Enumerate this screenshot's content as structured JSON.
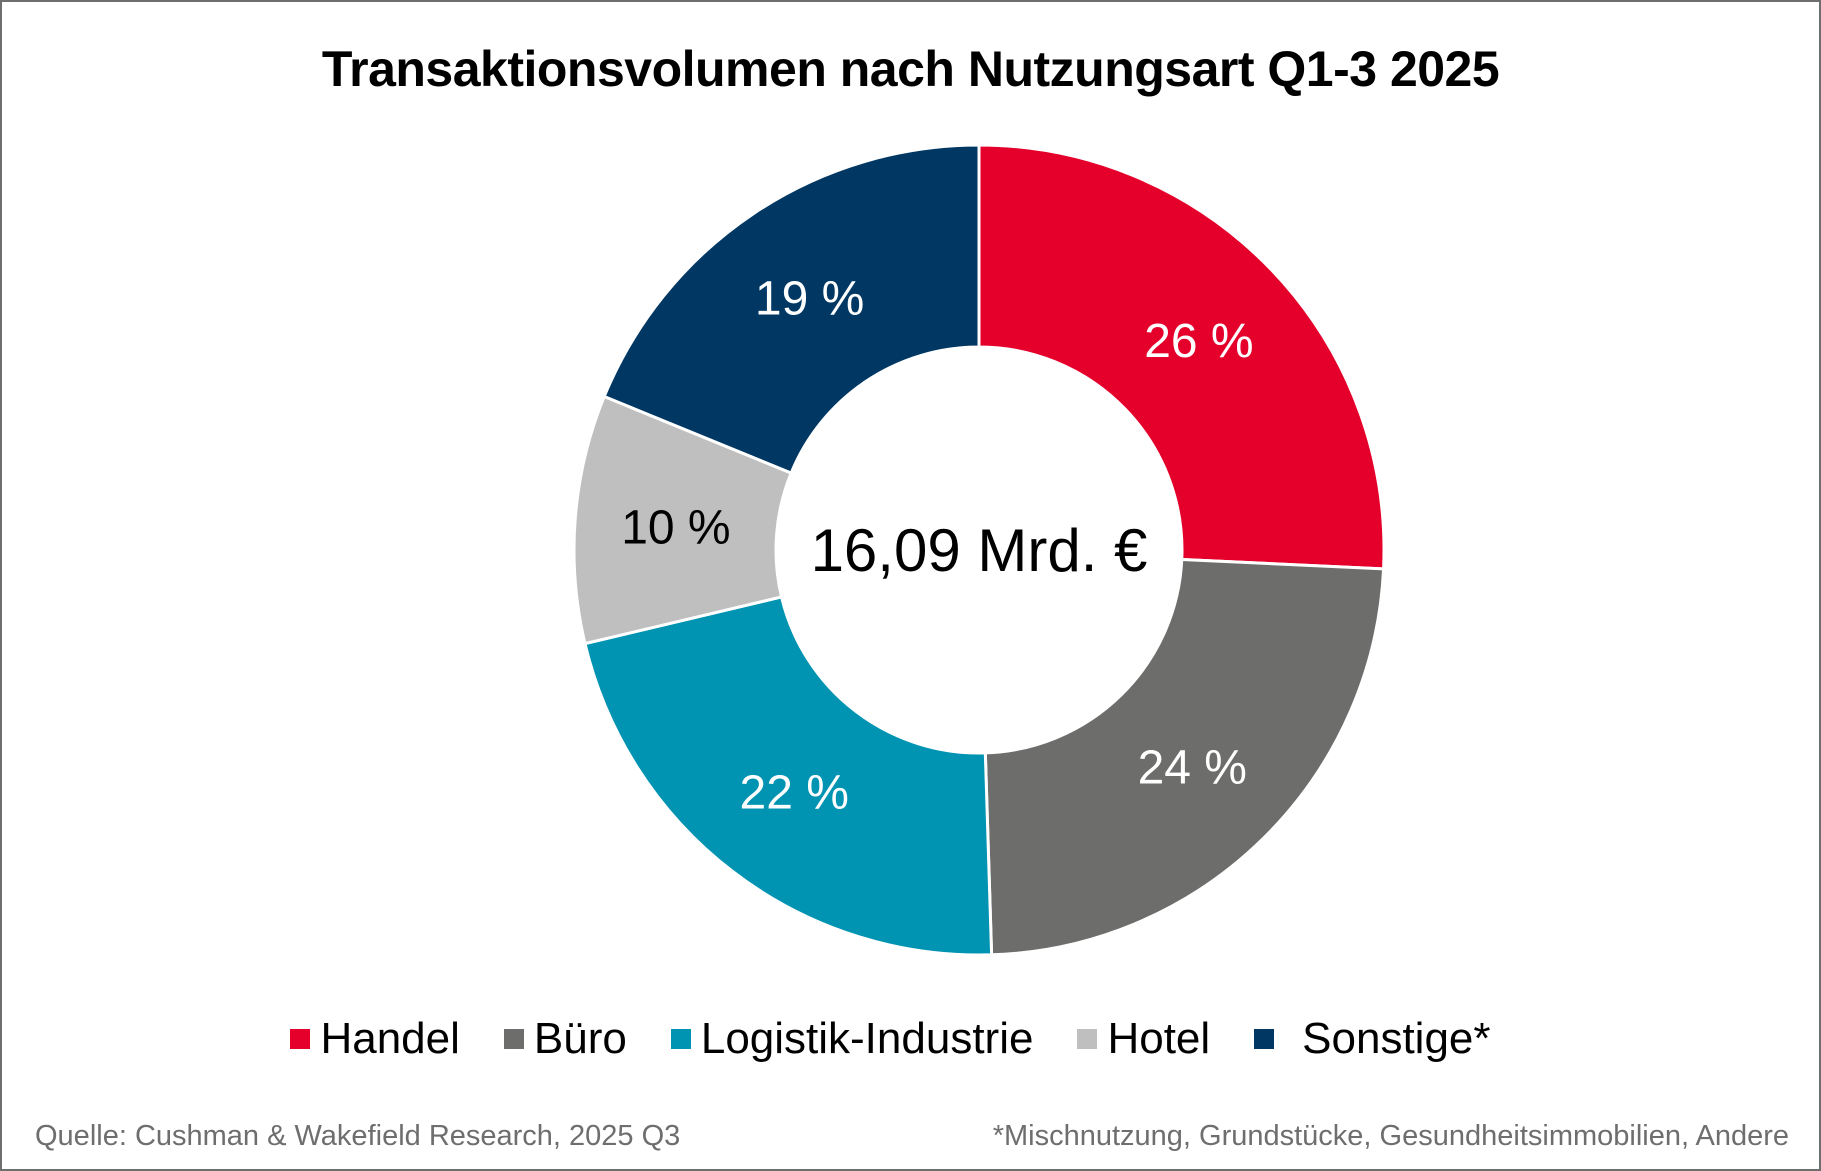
{
  "chart_data": {
    "type": "pie",
    "subtype": "donut",
    "title": "Transaktionsvolumen nach Nutzungsart Q1-3 2025",
    "center_label": "16,09 Mrd. €",
    "start_angle": "top",
    "direction": "clockwise",
    "categories": [
      "Handel",
      "Büro",
      "Logistik-Industrie",
      "Hotel",
      "Sonstige*"
    ],
    "values": [
      26,
      24,
      22,
      10,
      19
    ],
    "value_unit": "%",
    "data_labels": [
      "26 %",
      "24 %",
      "22 %",
      "10 %",
      "19 %"
    ],
    "colors": [
      "#e4002b",
      "#6d6e6c",
      "#0093b2",
      "#bfbfbf",
      "#003763"
    ],
    "label_colors": [
      "#ffffff",
      "#ffffff",
      "#ffffff",
      "#000000",
      "#ffffff"
    ],
    "legend_position": "bottom",
    "source": "Quelle: Cushman & Wakefield Research, 2025 Q3",
    "footnote": "*Mischnutzung, Grundstücke, Gesundheitsimmobilien, Andere"
  }
}
